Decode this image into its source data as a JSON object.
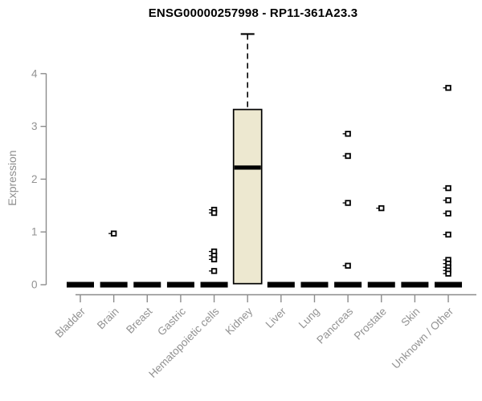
{
  "title": "ENSG00000257998 - RP11-361A23.3",
  "colors": {
    "box_fill": "#EDE8D0",
    "box_stroke": "#000000",
    "median": "#000000",
    "flat_bar": "#000000",
    "axis": "#8C8C8C",
    "tick_label": "#929292",
    "title": "#000000",
    "outlier": "#000000",
    "background": "#FFFFFF"
  },
  "chart_data": {
    "type": "boxplot",
    "title": "ENSG00000257998 - RP11-361A23.3",
    "xlabel": "",
    "ylabel": "Expression",
    "yticks": [
      0,
      1,
      2,
      3,
      4
    ],
    "ylim": [
      0,
      4.85
    ],
    "grid": false,
    "legend": "none",
    "categories": [
      "Bladder",
      "Brain",
      "Breast",
      "Gastric",
      "Hematopoietic cells",
      "Kidney",
      "Liver",
      "Lung",
      "Pancreas",
      "Prostate",
      "Skin",
      "Unknown / Other"
    ],
    "series": [
      {
        "name": "Bladder",
        "whisker_low": 0,
        "q1": 0,
        "median": 0,
        "q3": 0,
        "whisker_high": 0,
        "outliers": []
      },
      {
        "name": "Brain",
        "whisker_low": 0,
        "q1": 0,
        "median": 0,
        "q3": 0,
        "whisker_high": 0,
        "outliers": [
          0.97
        ]
      },
      {
        "name": "Breast",
        "whisker_low": 0,
        "q1": 0,
        "median": 0,
        "q3": 0,
        "whisker_high": 0,
        "outliers": []
      },
      {
        "name": "Gastric",
        "whisker_low": 0,
        "q1": 0,
        "median": 0,
        "q3": 0,
        "whisker_high": 0,
        "outliers": []
      },
      {
        "name": "Hematopoietic cells",
        "whisker_low": 0,
        "q1": 0,
        "median": 0,
        "q3": 0,
        "whisker_high": 0,
        "outliers": [
          1.42,
          1.36,
          0.63,
          0.55,
          0.48,
          0.26
        ]
      },
      {
        "name": "Kidney",
        "whisker_low": 0.02,
        "q1": 0.02,
        "median": 2.22,
        "q3": 3.32,
        "whisker_high": 4.75,
        "outliers": []
      },
      {
        "name": "Liver",
        "whisker_low": 0,
        "q1": 0,
        "median": 0,
        "q3": 0,
        "whisker_high": 0,
        "outliers": []
      },
      {
        "name": "Lung",
        "whisker_low": 0,
        "q1": 0,
        "median": 0,
        "q3": 0,
        "whisker_high": 0,
        "outliers": []
      },
      {
        "name": "Pancreas",
        "whisker_low": 0,
        "q1": 0,
        "median": 0,
        "q3": 0,
        "whisker_high": 0,
        "outliers": [
          2.86,
          2.44,
          1.55,
          0.36
        ]
      },
      {
        "name": "Prostate",
        "whisker_low": 0,
        "q1": 0,
        "median": 0,
        "q3": 0,
        "whisker_high": 0,
        "outliers": [
          1.45
        ]
      },
      {
        "name": "Skin",
        "whisker_low": 0,
        "q1": 0,
        "median": 0,
        "q3": 0,
        "whisker_high": 0,
        "outliers": []
      },
      {
        "name": "Unknown / Other",
        "whisker_low": 0,
        "q1": 0,
        "median": 0,
        "q3": 0,
        "whisker_high": 0,
        "outliers": [
          3.73,
          1.83,
          1.6,
          1.35,
          0.95,
          0.47,
          0.4,
          0.33,
          0.27,
          0.21
        ]
      }
    ]
  }
}
